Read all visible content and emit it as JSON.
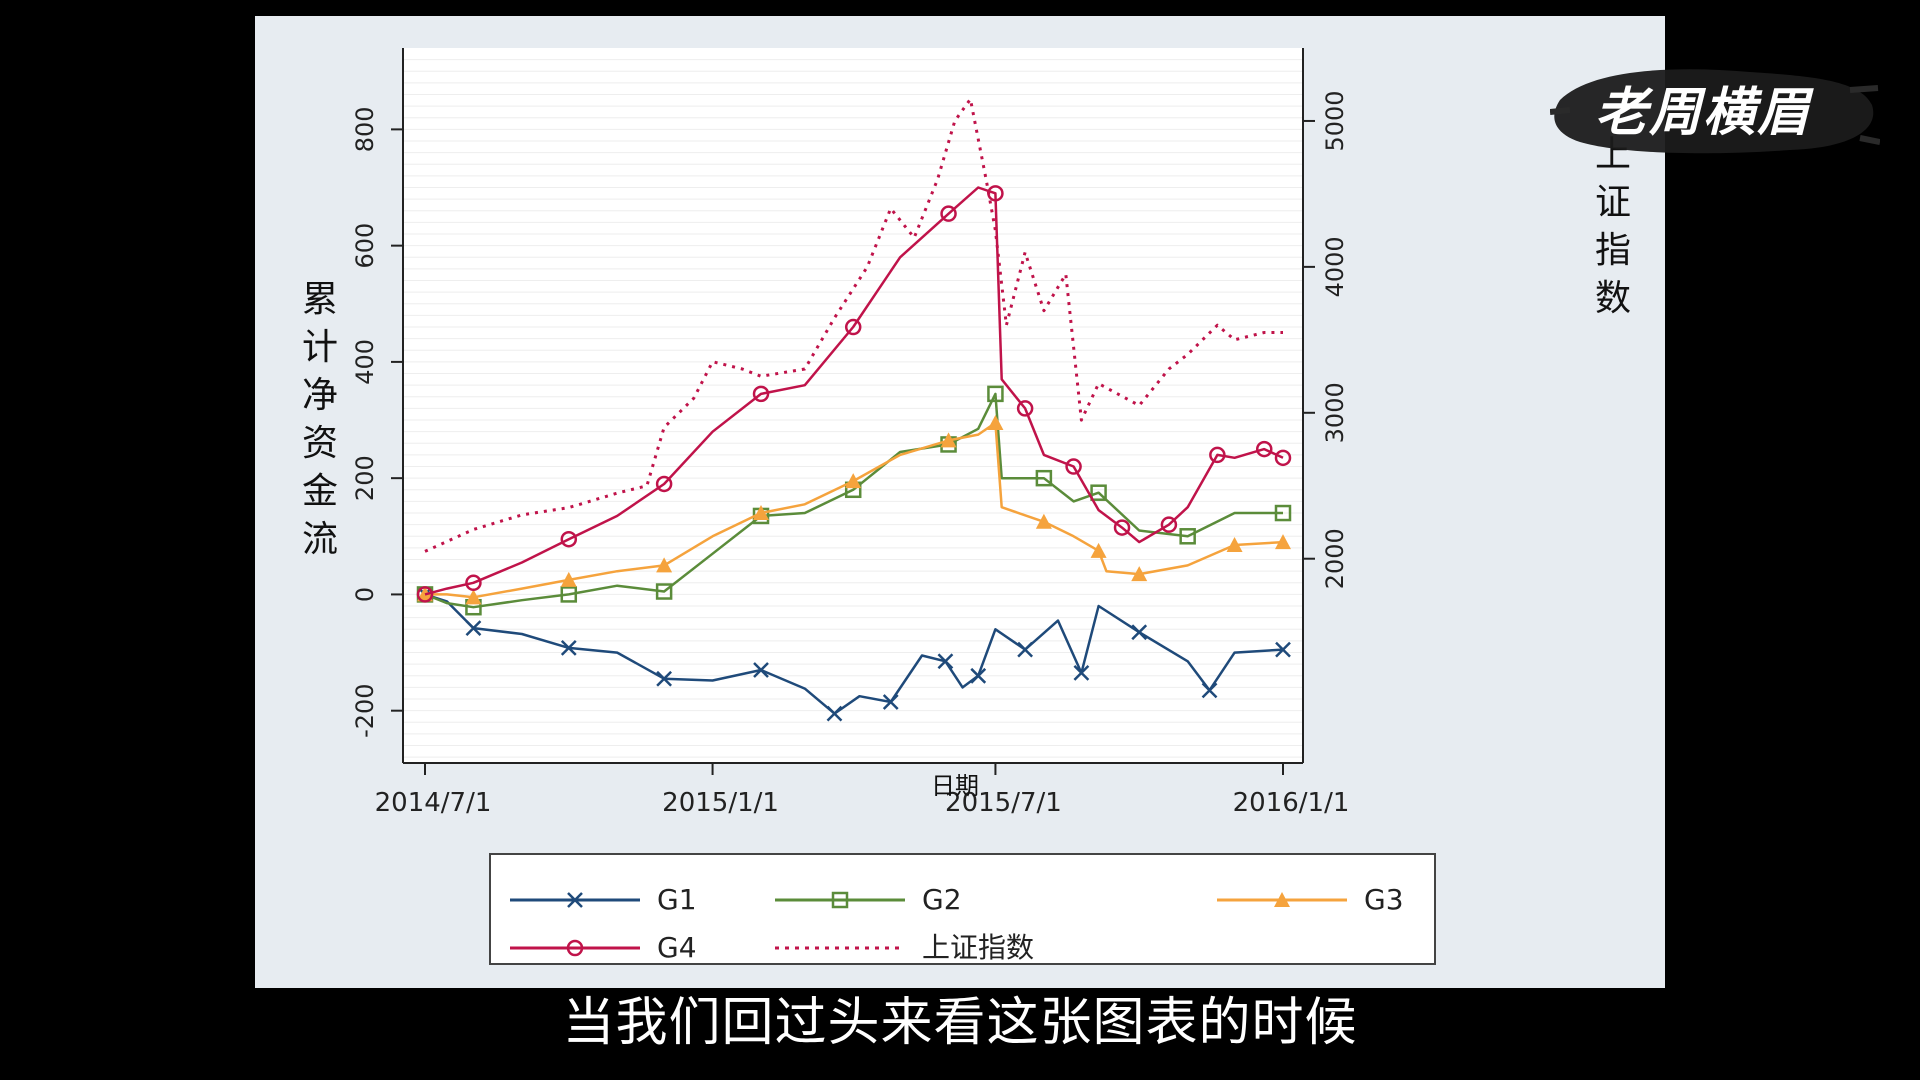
{
  "watermark": {
    "text": "老周横眉"
  },
  "subtitle": "当我们回过头来看这张图表的时候",
  "chart_data": {
    "type": "line",
    "xlabel": "日期",
    "ylabel": "累计净资金流",
    "y2label": "上证指数",
    "xlim": [
      "2014-07-01",
      "2016-01-01"
    ],
    "ylim": [
      -290,
      940
    ],
    "y2lim": [
      600,
      5500
    ],
    "xticks": [
      {
        "date": "2014-07-01",
        "label": "2014/7/1"
      },
      {
        "date": "2015-01-01",
        "label": "2015/1/1"
      },
      {
        "date": "2015-07-01",
        "label": "2015/7/1"
      },
      {
        "date": "2016-01-01",
        "label": "2016/1/1"
      }
    ],
    "yticks": [
      -200,
      0,
      200,
      400,
      600,
      800
    ],
    "y2ticks": [
      2000,
      3000,
      4000,
      5000
    ],
    "grid": true,
    "legend_position": "bottom",
    "series": [
      {
        "name": "G1",
        "axis": "left",
        "color": "#1f4a7a",
        "marker": "x",
        "dash": false,
        "points": [
          [
            "2014-07-01",
            0
          ],
          [
            "2014-07-15",
            -12
          ],
          [
            "2014-08-01",
            -58
          ],
          [
            "2014-09-01",
            -68
          ],
          [
            "2014-10-01",
            -92
          ],
          [
            "2014-11-01",
            -100
          ],
          [
            "2014-12-01",
            -145
          ],
          [
            "2015-01-01",
            -148
          ],
          [
            "2015-02-01",
            -130
          ],
          [
            "2015-03-01",
            -162
          ],
          [
            "2015-03-20",
            -205
          ],
          [
            "2015-04-05",
            -175
          ],
          [
            "2015-04-25",
            -185
          ],
          [
            "2015-05-15",
            -105
          ],
          [
            "2015-05-30",
            -115
          ],
          [
            "2015-06-10",
            -160
          ],
          [
            "2015-06-20",
            -140
          ],
          [
            "2015-07-01",
            -60
          ],
          [
            "2015-07-20",
            -95
          ],
          [
            "2015-08-10",
            -45
          ],
          [
            "2015-08-25",
            -135
          ],
          [
            "2015-09-05",
            -20
          ],
          [
            "2015-10-01",
            -65
          ],
          [
            "2015-11-01",
            -115
          ],
          [
            "2015-11-15",
            -165
          ],
          [
            "2015-12-01",
            -100
          ],
          [
            "2016-01-01",
            -95
          ]
        ]
      },
      {
        "name": "G2",
        "axis": "left",
        "color": "#5b8c3a",
        "marker": "square",
        "dash": false,
        "points": [
          [
            "2014-07-01",
            0
          ],
          [
            "2014-07-15",
            -15
          ],
          [
            "2014-08-01",
            -22
          ],
          [
            "2014-09-01",
            -10
          ],
          [
            "2014-10-01",
            0
          ],
          [
            "2014-11-01",
            15
          ],
          [
            "2014-12-01",
            5
          ],
          [
            "2015-01-01",
            70
          ],
          [
            "2015-02-01",
            135
          ],
          [
            "2015-03-01",
            140
          ],
          [
            "2015-04-01",
            180
          ],
          [
            "2015-05-01",
            245
          ],
          [
            "2015-06-01",
            258
          ],
          [
            "2015-06-20",
            285
          ],
          [
            "2015-07-01",
            345
          ],
          [
            "2015-07-05",
            200
          ],
          [
            "2015-08-01",
            200
          ],
          [
            "2015-08-20",
            160
          ],
          [
            "2015-09-05",
            175
          ],
          [
            "2015-10-01",
            110
          ],
          [
            "2015-11-01",
            100
          ],
          [
            "2015-12-01",
            140
          ],
          [
            "2016-01-01",
            140
          ]
        ]
      },
      {
        "name": "G3",
        "axis": "left",
        "color": "#f5a33d",
        "marker": "triangle",
        "dash": false,
        "points": [
          [
            "2014-07-01",
            0
          ],
          [
            "2014-07-15",
            0
          ],
          [
            "2014-08-01",
            -5
          ],
          [
            "2014-09-01",
            10
          ],
          [
            "2014-10-01",
            25
          ],
          [
            "2014-11-01",
            40
          ],
          [
            "2014-12-01",
            50
          ],
          [
            "2015-01-01",
            100
          ],
          [
            "2015-02-01",
            140
          ],
          [
            "2015-03-01",
            155
          ],
          [
            "2015-04-01",
            195
          ],
          [
            "2015-05-01",
            240
          ],
          [
            "2015-06-01",
            265
          ],
          [
            "2015-06-20",
            275
          ],
          [
            "2015-07-01",
            295
          ],
          [
            "2015-07-05",
            150
          ],
          [
            "2015-08-01",
            125
          ],
          [
            "2015-08-20",
            100
          ],
          [
            "2015-09-05",
            75
          ],
          [
            "2015-09-10",
            40
          ],
          [
            "2015-10-01",
            35
          ],
          [
            "2015-11-01",
            50
          ],
          [
            "2015-12-01",
            85
          ],
          [
            "2016-01-01",
            90
          ]
        ]
      },
      {
        "name": "G4",
        "axis": "left",
        "color": "#c0134a",
        "marker": "circle",
        "dash": false,
        "points": [
          [
            "2014-07-01",
            0
          ],
          [
            "2014-07-15",
            10
          ],
          [
            "2014-08-01",
            20
          ],
          [
            "2014-09-01",
            55
          ],
          [
            "2014-10-01",
            95
          ],
          [
            "2014-11-01",
            135
          ],
          [
            "2014-12-01",
            190
          ],
          [
            "2015-01-01",
            280
          ],
          [
            "2015-02-01",
            345
          ],
          [
            "2015-03-01",
            360
          ],
          [
            "2015-04-01",
            460
          ],
          [
            "2015-05-01",
            580
          ],
          [
            "2015-06-01",
            655
          ],
          [
            "2015-06-20",
            700
          ],
          [
            "2015-07-01",
            690
          ],
          [
            "2015-07-05",
            370
          ],
          [
            "2015-07-20",
            320
          ],
          [
            "2015-08-01",
            240
          ],
          [
            "2015-08-20",
            220
          ],
          [
            "2015-09-05",
            145
          ],
          [
            "2015-09-20",
            115
          ],
          [
            "2015-10-01",
            90
          ],
          [
            "2015-10-20",
            120
          ],
          [
            "2015-11-01",
            150
          ],
          [
            "2015-11-20",
            240
          ],
          [
            "2015-12-01",
            235
          ],
          [
            "2015-12-20",
            250
          ],
          [
            "2016-01-01",
            235
          ]
        ]
      },
      {
        "name": "上证指数",
        "axis": "right",
        "color": "#c0134a",
        "marker": "none",
        "dash": true,
        "points": [
          [
            "2014-07-01",
            2050
          ],
          [
            "2014-08-01",
            2200
          ],
          [
            "2014-09-01",
            2300
          ],
          [
            "2014-10-01",
            2350
          ],
          [
            "2014-11-01",
            2450
          ],
          [
            "2014-11-20",
            2500
          ],
          [
            "2014-12-01",
            2900
          ],
          [
            "2014-12-20",
            3100
          ],
          [
            "2015-01-01",
            3350
          ],
          [
            "2015-01-20",
            3300
          ],
          [
            "2015-02-01",
            3250
          ],
          [
            "2015-03-01",
            3300
          ],
          [
            "2015-03-20",
            3650
          ],
          [
            "2015-04-10",
            4000
          ],
          [
            "2015-04-25",
            4400
          ],
          [
            "2015-05-10",
            4200
          ],
          [
            "2015-05-25",
            4600
          ],
          [
            "2015-06-05",
            5000
          ],
          [
            "2015-06-15",
            5150
          ],
          [
            "2015-06-25",
            4600
          ],
          [
            "2015-07-01",
            4250
          ],
          [
            "2015-07-08",
            3600
          ],
          [
            "2015-07-20",
            4100
          ],
          [
            "2015-08-01",
            3700
          ],
          [
            "2015-08-15",
            3950
          ],
          [
            "2015-08-25",
            2950
          ],
          [
            "2015-09-05",
            3200
          ],
          [
            "2015-10-01",
            3050
          ],
          [
            "2015-10-20",
            3300
          ],
          [
            "2015-11-01",
            3400
          ],
          [
            "2015-11-20",
            3600
          ],
          [
            "2015-12-01",
            3500
          ],
          [
            "2015-12-20",
            3550
          ],
          [
            "2016-01-01",
            3550
          ]
        ]
      }
    ]
  }
}
